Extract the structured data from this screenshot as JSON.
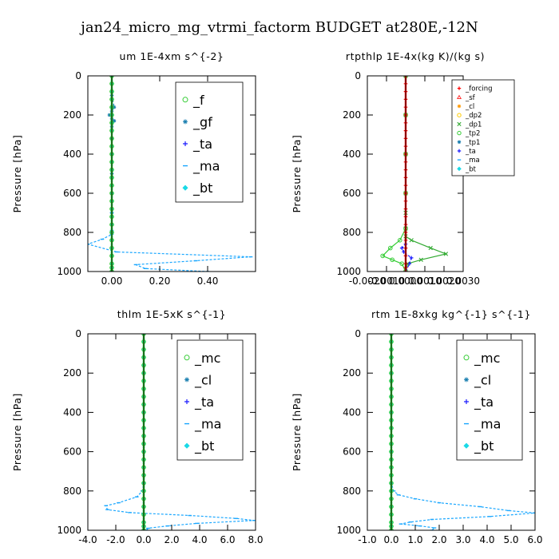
{
  "figure_title": "jan24_micro_mg_vtrmi_factorm  BUDGET at280E,-12N",
  "chart_data": [
    {
      "type": "line",
      "title": "um   1E-4xm  s^{-2}",
      "ylabel": "Pressure [hPa]",
      "xlim": [
        -0.1,
        0.6
      ],
      "ylim": [
        1000,
        0
      ],
      "xticks": [
        0.0,
        0.2,
        0.4
      ],
      "xticklabels": [
        "0.00",
        "0.20",
        "0.40"
      ],
      "yticks": [
        0,
        200,
        400,
        600,
        800,
        1000
      ],
      "yticklabels": [
        "0",
        "200",
        "400",
        "600",
        "800",
        "1000"
      ],
      "legend_style": "big",
      "legend": [
        {
          "name": "_f",
          "color": "#33cc33",
          "marker": "circle"
        },
        {
          "name": "_gf",
          "color": "#1a7fb0",
          "marker": "star"
        },
        {
          "name": "_ta",
          "color": "#1a1aff",
          "marker": "plus"
        },
        {
          "name": "_ma",
          "color": "#1aa7ff",
          "marker": "dash"
        },
        {
          "name": "_bt",
          "color": "#19d9e6",
          "marker": "diamond"
        }
      ],
      "series": [
        {
          "name": "_bt",
          "color": "#19d9e6",
          "marker": "diamond",
          "dashed": true,
          "x": [
            0,
            0,
            0,
            0,
            0,
            0,
            0,
            0,
            0,
            0,
            0,
            0,
            0,
            0,
            0,
            0,
            0,
            0,
            0,
            0,
            0,
            0,
            0,
            0,
            0,
            0,
            0
          ],
          "y": [
            0,
            40,
            80,
            120,
            160,
            200,
            240,
            280,
            320,
            360,
            400,
            440,
            480,
            520,
            560,
            600,
            640,
            680,
            720,
            760,
            800,
            840,
            880,
            920,
            960,
            980,
            1000
          ]
        },
        {
          "name": "_gf",
          "color": "#1a7fb0",
          "marker": "star",
          "dashed": true,
          "x": [
            0,
            0,
            0.01,
            0,
            -0.01,
            0,
            0.01,
            0,
            0,
            0,
            0,
            0,
            0,
            0,
            0
          ],
          "y": [
            0,
            100,
            160,
            180,
            200,
            220,
            230,
            260,
            320,
            400,
            500,
            600,
            700,
            800,
            1000
          ]
        },
        {
          "name": "_ma",
          "color": "#1aa7ff",
          "marker": "dash",
          "dashed": true,
          "x": [
            0,
            0,
            0,
            0,
            0,
            0,
            0,
            0,
            -0.04,
            -0.1,
            0.02,
            0.58,
            0.35,
            0.1,
            0.14,
            0.4
          ],
          "y": [
            0,
            200,
            400,
            600,
            700,
            760,
            790,
            810,
            835,
            860,
            900,
            925,
            945,
            965,
            985,
            1000
          ]
        },
        {
          "name": "_f",
          "color": "#33cc33",
          "marker": "circle",
          "dashed": false,
          "x": [
            0,
            0,
            0,
            0,
            0,
            0,
            0,
            0,
            0,
            0,
            0,
            0,
            0,
            0,
            0,
            0,
            0,
            0,
            0,
            0,
            0,
            0,
            0,
            0,
            0,
            0,
            0
          ],
          "y": [
            0,
            40,
            80,
            120,
            160,
            200,
            240,
            280,
            320,
            360,
            400,
            440,
            480,
            520,
            560,
            600,
            640,
            680,
            720,
            760,
            800,
            840,
            880,
            920,
            960,
            980,
            1000
          ]
        }
      ]
    },
    {
      "type": "line",
      "title": "rtpthlp   1E-4x(kg K)/(kg s)",
      "ylabel": "Pressure [hPa]",
      "xlim": [
        -0.002,
        0.003
      ],
      "ylim": [
        1000,
        0
      ],
      "xticks": [
        -0.002,
        -0.001,
        0.0,
        0.001,
        0.002,
        0.003
      ],
      "xticklabels": [
        "-0.0020",
        "-0.0010",
        "0.0000",
        "0.0010",
        "0.0020",
        "0.0030"
      ],
      "yticks": [
        0,
        200,
        400,
        600,
        800,
        1000
      ],
      "yticklabels": [
        "0",
        "200",
        "400",
        "600",
        "800",
        "1000"
      ],
      "legend_style": "small",
      "legend": [
        {
          "name": "_forcing",
          "color": "#ff0000",
          "marker": "plus"
        },
        {
          "name": "_sf",
          "color": "#ff3333",
          "marker": "triangle"
        },
        {
          "name": "_cl",
          "color": "#ff9900",
          "marker": "star"
        },
        {
          "name": "_dp2",
          "color": "#ffcc00",
          "marker": "circle"
        },
        {
          "name": "_dp1",
          "color": "#33aa33",
          "marker": "x"
        },
        {
          "name": "_tp2",
          "color": "#33cc33",
          "marker": "circle"
        },
        {
          "name": "_tp1",
          "color": "#1a7fb0",
          "marker": "star"
        },
        {
          "name": "_ta",
          "color": "#1a1aff",
          "marker": "plus"
        },
        {
          "name": "_ma",
          "color": "#1aa7ff",
          "marker": "dash"
        },
        {
          "name": "_bt",
          "color": "#19d9e6",
          "marker": "diamond"
        }
      ],
      "series": [
        {
          "name": "_dp1",
          "color": "#33aa33",
          "marker": "x",
          "dashed": false,
          "x": [
            0,
            0,
            0,
            0,
            0,
            0,
            0,
            0.0003,
            0.0013,
            0.0021,
            0.0008,
            0.0001,
            0
          ],
          "y": [
            0,
            200,
            400,
            600,
            700,
            780,
            820,
            840,
            880,
            910,
            940,
            960,
            1000
          ]
        },
        {
          "name": "_tp2",
          "color": "#33cc33",
          "marker": "circle",
          "dashed": false,
          "x": [
            0,
            0,
            0,
            0,
            0,
            -0.0003,
            -0.0008,
            -0.0012,
            -0.0007,
            -0.0002,
            0
          ],
          "y": [
            0,
            200,
            400,
            600,
            780,
            840,
            880,
            920,
            940,
            960,
            1000
          ]
        },
        {
          "name": "_ta",
          "color": "#1a1aff",
          "marker": "plus",
          "dashed": true,
          "x": [
            0,
            0,
            -0.0002,
            -0.0001,
            0.0003,
            0.0002,
            0
          ],
          "y": [
            0,
            860,
            880,
            900,
            930,
            960,
            1000
          ]
        },
        {
          "name": "_forcing",
          "color": "#ff0000",
          "marker": "plus",
          "dashed": false,
          "x": [
            0,
            0,
            0,
            0,
            0,
            0,
            0,
            0,
            0,
            0,
            0,
            0,
            0,
            0,
            0,
            0,
            0,
            0,
            0,
            0,
            0,
            0,
            0,
            0,
            0,
            0,
            0
          ],
          "y": [
            0,
            40,
            80,
            120,
            160,
            200,
            240,
            280,
            320,
            360,
            400,
            440,
            480,
            520,
            560,
            600,
            640,
            680,
            720,
            760,
            800,
            840,
            880,
            920,
            960,
            980,
            1000
          ]
        }
      ]
    },
    {
      "type": "line",
      "title": "thlm   1E-5xK  s^{-1}",
      "ylabel": "Pressure [hPa]",
      "xlim": [
        -4.0,
        8.0
      ],
      "ylim": [
        1000,
        0
      ],
      "xticks": [
        -4,
        -2,
        0,
        2,
        4,
        6,
        8
      ],
      "xticklabels": [
        "-4.0",
        "-2.0",
        "0.0",
        "2.0",
        "4.0",
        "6.0",
        "8.0"
      ],
      "yticks": [
        0,
        200,
        400,
        600,
        800,
        1000
      ],
      "yticklabels": [
        "0",
        "200",
        "400",
        "600",
        "800",
        "1000"
      ],
      "legend_style": "big",
      "legend": [
        {
          "name": "_mc",
          "color": "#33cc33",
          "marker": "circle"
        },
        {
          "name": "_cl",
          "color": "#1a7fb0",
          "marker": "star"
        },
        {
          "name": "_ta",
          "color": "#1a1aff",
          "marker": "plus"
        },
        {
          "name": "_ma",
          "color": "#1aa7ff",
          "marker": "dash"
        },
        {
          "name": "_bt",
          "color": "#19d9e6",
          "marker": "diamond"
        }
      ],
      "series": [
        {
          "name": "_bt",
          "color": "#19d9e6",
          "marker": "diamond",
          "dashed": true,
          "x": [
            0,
            0,
            0,
            0,
            0,
            0,
            0,
            0,
            0,
            0,
            0,
            0,
            0,
            0,
            0,
            0,
            0,
            0,
            0,
            0,
            0,
            0,
            0,
            0,
            0,
            0,
            0
          ],
          "y": [
            0,
            40,
            80,
            120,
            160,
            200,
            240,
            280,
            320,
            360,
            400,
            440,
            480,
            520,
            560,
            600,
            640,
            680,
            720,
            760,
            800,
            840,
            880,
            920,
            960,
            980,
            1000
          ]
        },
        {
          "name": "_ma",
          "color": "#1aa7ff",
          "marker": "dash",
          "dashed": true,
          "x": [
            0,
            0,
            0,
            0,
            0,
            -0.1,
            -0.5,
            -1.8,
            -2.7,
            -2.6,
            -1.0,
            3.3,
            6.6,
            7.9,
            3.8,
            1.7,
            0.3,
            0.2
          ],
          "y": [
            0,
            200,
            400,
            600,
            760,
            800,
            830,
            860,
            875,
            895,
            910,
            925,
            940,
            950,
            965,
            978,
            990,
            1000
          ]
        },
        {
          "name": "_mc",
          "color": "#33cc33",
          "marker": "circle",
          "dashed": false,
          "x": [
            0,
            0,
            0,
            0,
            0,
            0,
            0,
            0,
            0,
            0,
            0,
            0,
            0,
            0,
            0,
            0,
            0,
            0,
            0,
            0,
            0,
            0,
            0,
            0,
            0,
            0,
            0
          ],
          "y": [
            0,
            40,
            80,
            120,
            160,
            200,
            240,
            280,
            320,
            360,
            400,
            440,
            480,
            520,
            560,
            600,
            640,
            680,
            720,
            760,
            800,
            840,
            880,
            920,
            960,
            980,
            1000
          ]
        }
      ]
    },
    {
      "type": "line",
      "title": "rtm   1E-8xkg kg^{-1} s^{-1}",
      "ylabel": "Pressure [hPa]",
      "xlim": [
        -1.0,
        6.0
      ],
      "ylim": [
        1000,
        0
      ],
      "xticks": [
        -1,
        0,
        1,
        2,
        3,
        4,
        5,
        6
      ],
      "xticklabels": [
        "-1.0",
        "0.0",
        "1.0",
        "2.0",
        "3.0",
        "4.0",
        "5.0",
        "6.0"
      ],
      "yticks": [
        0,
        200,
        400,
        600,
        800,
        1000
      ],
      "yticklabels": [
        "0",
        "200",
        "400",
        "600",
        "800",
        "1000"
      ],
      "legend_style": "big",
      "legend": [
        {
          "name": "_mc",
          "color": "#33cc33",
          "marker": "circle"
        },
        {
          "name": "_cl",
          "color": "#1a7fb0",
          "marker": "star"
        },
        {
          "name": "_ta",
          "color": "#1a1aff",
          "marker": "plus"
        },
        {
          "name": "_ma",
          "color": "#1aa7ff",
          "marker": "dash"
        },
        {
          "name": "_bt",
          "color": "#19d9e6",
          "marker": "diamond"
        }
      ],
      "series": [
        {
          "name": "_bt",
          "color": "#19d9e6",
          "marker": "diamond",
          "dashed": true,
          "x": [
            0,
            0,
            0,
            0,
            0,
            0,
            0,
            0,
            0,
            0,
            0,
            0,
            0,
            0,
            0,
            0,
            0,
            0,
            0,
            0,
            0,
            0,
            0,
            0,
            0,
            0,
            0
          ],
          "y": [
            0,
            40,
            80,
            120,
            160,
            200,
            240,
            280,
            320,
            360,
            400,
            440,
            480,
            520,
            560,
            600,
            640,
            680,
            720,
            760,
            800,
            840,
            880,
            920,
            960,
            980,
            1000
          ]
        },
        {
          "name": "_ma",
          "color": "#1aa7ff",
          "marker": "dash",
          "dashed": true,
          "x": [
            0,
            0,
            0,
            0,
            0,
            0.1,
            0.3,
            1.0,
            2.0,
            3.7,
            4.9,
            6.0,
            4.1,
            1.7,
            0.8,
            0.4,
            1.2,
            1.8,
            1.7
          ],
          "y": [
            0,
            200,
            400,
            600,
            760,
            800,
            820,
            840,
            860,
            880,
            900,
            912,
            930,
            945,
            958,
            968,
            978,
            988,
            1000
          ]
        },
        {
          "name": "_mc",
          "color": "#33cc33",
          "marker": "circle",
          "dashed": false,
          "x": [
            0,
            0,
            0,
            0,
            0,
            0,
            0,
            0,
            0,
            0,
            0,
            0,
            0,
            0,
            0,
            0,
            0,
            0,
            0,
            0,
            0,
            0,
            0,
            0,
            0,
            0,
            0
          ],
          "y": [
            0,
            40,
            80,
            120,
            160,
            200,
            240,
            280,
            320,
            360,
            400,
            440,
            480,
            520,
            560,
            600,
            640,
            680,
            720,
            760,
            800,
            840,
            880,
            920,
            960,
            980,
            1000
          ]
        }
      ]
    }
  ]
}
